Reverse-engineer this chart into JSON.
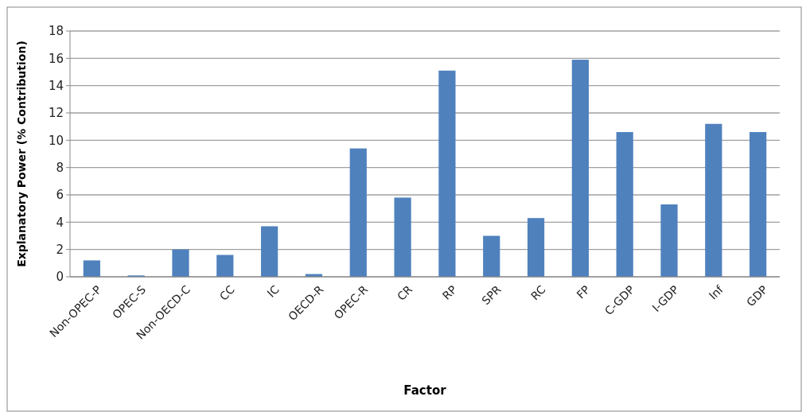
{
  "chart_data": {
    "type": "bar",
    "xlabel": "Factor",
    "ylabel": "Explanatory Power (% Contribution)",
    "categories": [
      "Non-OPEC-P",
      "OPEC-S",
      "Non-OECD-C",
      "CC",
      "IC",
      "OECD-R",
      "OPEC-R",
      "CR",
      "RP",
      "SPR",
      "RC",
      "FP",
      "C-GDP",
      "I-GDP",
      "Inf",
      "GDP"
    ],
    "values": [
      1.2,
      0.1,
      2.0,
      1.6,
      3.7,
      0.2,
      9.4,
      5.8,
      15.1,
      3.0,
      4.3,
      15.9,
      10.6,
      5.3,
      11.2,
      10.6
    ],
    "color": "#4f81bd",
    "ylim": [
      0,
      18
    ],
    "yticks": [
      0,
      2,
      4,
      6,
      8,
      10,
      12,
      14,
      16,
      18
    ],
    "grid": "y"
  }
}
